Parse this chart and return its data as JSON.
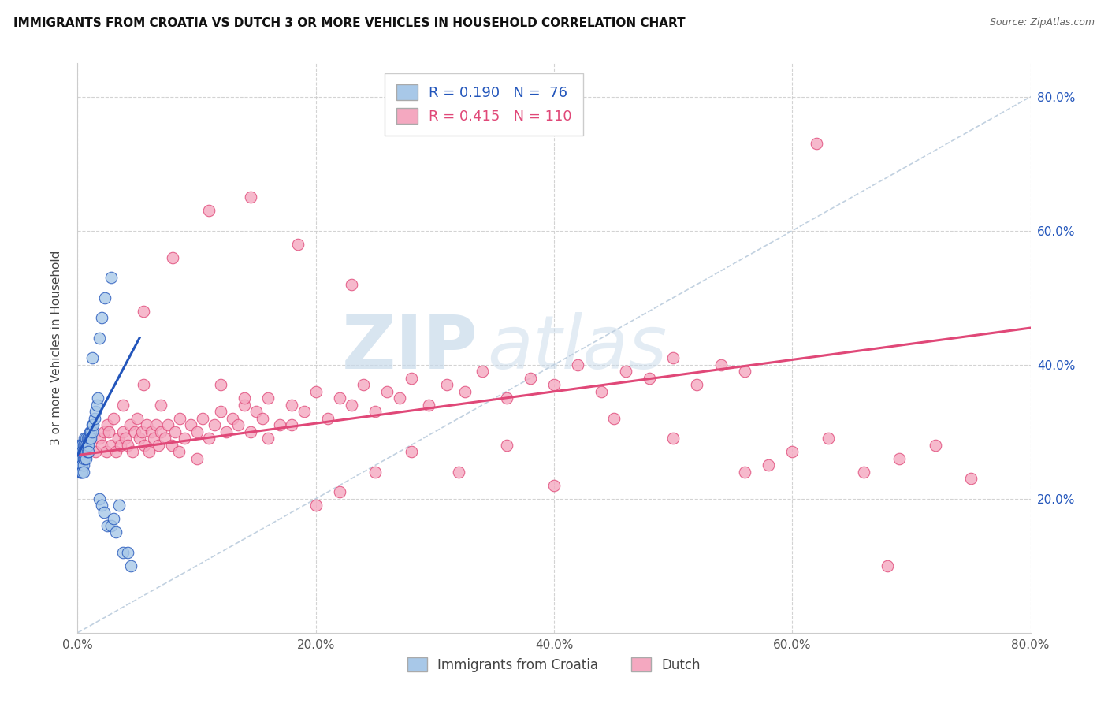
{
  "title": "IMMIGRANTS FROM CROATIA VS DUTCH 3 OR MORE VEHICLES IN HOUSEHOLD CORRELATION CHART",
  "source": "Source: ZipAtlas.com",
  "ylabel": "3 or more Vehicles in Household",
  "legend_label1": "Immigrants from Croatia",
  "legend_label2": "Dutch",
  "R1": 0.19,
  "N1": 76,
  "R2": 0.415,
  "N2": 110,
  "color1": "#a8c8e8",
  "color2": "#f4a8c0",
  "line_color1": "#2255bb",
  "line_color2": "#e04878",
  "background": "#ffffff",
  "grid_color": "#cccccc",
  "xlim": [
    0.0,
    0.8
  ],
  "ylim": [
    0.0,
    0.85
  ],
  "xticks": [
    0.0,
    0.2,
    0.4,
    0.6,
    0.8
  ],
  "yticks": [
    0.2,
    0.4,
    0.6,
    0.8
  ],
  "watermark_top": "ZIP",
  "watermark_bot": "atlas",
  "watermark_color": "#c8daea",
  "right_tick_color": "#2255bb",
  "diag_color": "#bbccdd",
  "scatter1_x": [
    0.001,
    0.001,
    0.001,
    0.001,
    0.001,
    0.001,
    0.001,
    0.001,
    0.002,
    0.002,
    0.002,
    0.002,
    0.002,
    0.002,
    0.002,
    0.003,
    0.003,
    0.003,
    0.003,
    0.003,
    0.003,
    0.003,
    0.003,
    0.004,
    0.004,
    0.004,
    0.004,
    0.004,
    0.004,
    0.005,
    0.005,
    0.005,
    0.005,
    0.005,
    0.005,
    0.006,
    0.006,
    0.006,
    0.006,
    0.007,
    0.007,
    0.007,
    0.007,
    0.008,
    0.008,
    0.008,
    0.009,
    0.009,
    0.009,
    0.01,
    0.01,
    0.011,
    0.011,
    0.012,
    0.012,
    0.013,
    0.014,
    0.015,
    0.016,
    0.017,
    0.018,
    0.02,
    0.022,
    0.025,
    0.028,
    0.03,
    0.032,
    0.035,
    0.038,
    0.042,
    0.045,
    0.012,
    0.018,
    0.02,
    0.023,
    0.028
  ],
  "scatter1_y": [
    0.28,
    0.27,
    0.27,
    0.26,
    0.26,
    0.25,
    0.25,
    0.25,
    0.27,
    0.27,
    0.26,
    0.26,
    0.25,
    0.25,
    0.24,
    0.28,
    0.27,
    0.26,
    0.26,
    0.25,
    0.25,
    0.24,
    0.24,
    0.28,
    0.27,
    0.27,
    0.26,
    0.25,
    0.24,
    0.28,
    0.27,
    0.27,
    0.26,
    0.25,
    0.24,
    0.29,
    0.28,
    0.27,
    0.26,
    0.29,
    0.28,
    0.27,
    0.26,
    0.29,
    0.28,
    0.27,
    0.29,
    0.28,
    0.27,
    0.3,
    0.29,
    0.3,
    0.29,
    0.31,
    0.3,
    0.31,
    0.32,
    0.33,
    0.34,
    0.35,
    0.2,
    0.19,
    0.18,
    0.16,
    0.16,
    0.17,
    0.15,
    0.19,
    0.12,
    0.12,
    0.1,
    0.41,
    0.44,
    0.47,
    0.5,
    0.53
  ],
  "scatter2_x": [
    0.015,
    0.018,
    0.02,
    0.022,
    0.024,
    0.025,
    0.026,
    0.028,
    0.03,
    0.032,
    0.034,
    0.036,
    0.038,
    0.04,
    0.042,
    0.044,
    0.046,
    0.048,
    0.05,
    0.052,
    0.054,
    0.056,
    0.058,
    0.06,
    0.062,
    0.064,
    0.066,
    0.068,
    0.07,
    0.073,
    0.076,
    0.079,
    0.082,
    0.086,
    0.09,
    0.095,
    0.1,
    0.105,
    0.11,
    0.115,
    0.12,
    0.125,
    0.13,
    0.135,
    0.14,
    0.145,
    0.15,
    0.155,
    0.16,
    0.17,
    0.18,
    0.19,
    0.2,
    0.21,
    0.22,
    0.23,
    0.24,
    0.25,
    0.26,
    0.27,
    0.28,
    0.295,
    0.31,
    0.325,
    0.34,
    0.36,
    0.38,
    0.4,
    0.42,
    0.44,
    0.46,
    0.48,
    0.5,
    0.52,
    0.54,
    0.56,
    0.58,
    0.6,
    0.63,
    0.66,
    0.69,
    0.72,
    0.75,
    0.038,
    0.055,
    0.07,
    0.085,
    0.1,
    0.12,
    0.14,
    0.16,
    0.18,
    0.2,
    0.22,
    0.25,
    0.28,
    0.32,
    0.36,
    0.4,
    0.45,
    0.5,
    0.56,
    0.62,
    0.68,
    0.055,
    0.08,
    0.11,
    0.145,
    0.185,
    0.23
  ],
  "scatter2_y": [
    0.27,
    0.29,
    0.28,
    0.3,
    0.27,
    0.31,
    0.3,
    0.28,
    0.32,
    0.27,
    0.29,
    0.28,
    0.3,
    0.29,
    0.28,
    0.31,
    0.27,
    0.3,
    0.32,
    0.29,
    0.3,
    0.28,
    0.31,
    0.27,
    0.3,
    0.29,
    0.31,
    0.28,
    0.3,
    0.29,
    0.31,
    0.28,
    0.3,
    0.32,
    0.29,
    0.31,
    0.3,
    0.32,
    0.29,
    0.31,
    0.33,
    0.3,
    0.32,
    0.31,
    0.34,
    0.3,
    0.33,
    0.32,
    0.35,
    0.31,
    0.34,
    0.33,
    0.36,
    0.32,
    0.35,
    0.34,
    0.37,
    0.33,
    0.36,
    0.35,
    0.38,
    0.34,
    0.37,
    0.36,
    0.39,
    0.35,
    0.38,
    0.37,
    0.4,
    0.36,
    0.39,
    0.38,
    0.41,
    0.37,
    0.4,
    0.39,
    0.25,
    0.27,
    0.29,
    0.24,
    0.26,
    0.28,
    0.23,
    0.34,
    0.37,
    0.34,
    0.27,
    0.26,
    0.37,
    0.35,
    0.29,
    0.31,
    0.19,
    0.21,
    0.24,
    0.27,
    0.24,
    0.28,
    0.22,
    0.32,
    0.29,
    0.24,
    0.73,
    0.1,
    0.48,
    0.56,
    0.63,
    0.65,
    0.58,
    0.52
  ],
  "blue_line_x": [
    0.0,
    0.052
  ],
  "blue_line_y": [
    0.265,
    0.44
  ],
  "pink_line_x": [
    0.0,
    0.8
  ],
  "pink_line_y": [
    0.265,
    0.455
  ]
}
